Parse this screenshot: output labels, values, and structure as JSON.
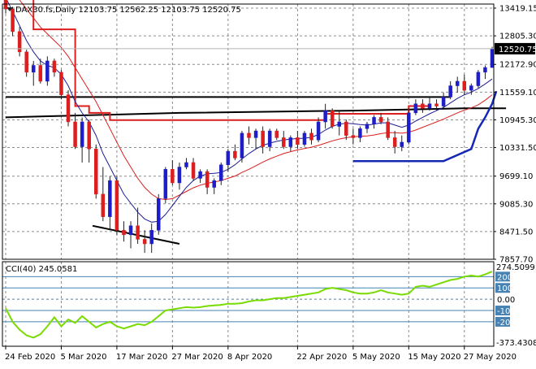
{
  "chart_data": {
    "type": "candlestick",
    "symbol_line": "DAX30.fs,Daily  12103.75 12562.25 12103.75 12520.75",
    "last_price": 12520.75,
    "colors": {
      "bull": "#1e1ec8",
      "bear": "#dc1e1e",
      "grid": "#8c8c8c",
      "ma_fast": "#1e1e96",
      "ma_slow": "#dc1e1e",
      "step_red": "#dc1e1e",
      "step_blue": "#1428b4",
      "support": "#000000",
      "cci": "#78dc00",
      "cci_level_fill": "#4682b4",
      "price_tag_bg": "#000000"
    },
    "main": {
      "ylim": [
        7857.7,
        13419.15
      ],
      "y_ticks": [
        "13419.15",
        "12805.30",
        "12172.90",
        "11559.10",
        "10945.30",
        "10331.50",
        "9699.10",
        "9085.30",
        "8471.50",
        "7857.70"
      ]
    },
    "x_ticks": [
      "24 Feb 2020",
      "5 Mar 2020",
      "17 Mar 2020",
      "27 Mar 2020",
      "8 Apr 2020",
      "22 Apr 2020",
      "5 May 2020",
      "15 May 2020",
      "27 May 2020"
    ],
    "x_tick_index": [
      0,
      8,
      16,
      24,
      32,
      42,
      50,
      58,
      66
    ],
    "candles": [
      [
        13780,
        13800,
        13300,
        13400
      ],
      [
        13400,
        13450,
        12800,
        12900
      ],
      [
        12900,
        13000,
        12350,
        12450
      ],
      [
        12450,
        12500,
        11900,
        12000
      ],
      [
        12000,
        12250,
        11700,
        12150
      ],
      [
        12150,
        12300,
        11750,
        11800
      ],
      [
        11800,
        12350,
        11700,
        12250
      ],
      [
        12250,
        12300,
        11900,
        12000
      ],
      [
        12000,
        12050,
        11400,
        11500
      ],
      [
        11500,
        11600,
        10800,
        10900
      ],
      [
        10900,
        11100,
        10300,
        10350
      ],
      [
        10350,
        11000,
        10000,
        10900
      ],
      [
        10900,
        10950,
        10000,
        10300
      ],
      [
        10300,
        10400,
        9200,
        9300
      ],
      [
        9300,
        9900,
        8700,
        8800
      ],
      [
        8800,
        9700,
        8500,
        9600
      ],
      [
        9600,
        9700,
        8400,
        8500
      ],
      [
        8500,
        8700,
        8250,
        8400
      ],
      [
        8400,
        8700,
        8100,
        8600
      ],
      [
        8600,
        9000,
        8200,
        8300
      ],
      [
        8300,
        8500,
        8000,
        8200
      ],
      [
        8200,
        8650,
        8000,
        8500
      ],
      [
        8500,
        9300,
        8400,
        9200
      ],
      [
        9200,
        9900,
        9100,
        9850
      ],
      [
        9850,
        10050,
        9500,
        9550
      ],
      [
        9550,
        10000,
        9400,
        9900
      ],
      [
        9900,
        10100,
        9850,
        10000
      ],
      [
        10000,
        10100,
        9600,
        9650
      ],
      [
        9650,
        9850,
        9550,
        9800
      ],
      [
        9800,
        9850,
        9300,
        9450
      ],
      [
        9450,
        9650,
        9300,
        9600
      ],
      [
        9600,
        10000,
        9500,
        9950
      ],
      [
        9950,
        10300,
        9800,
        10250
      ],
      [
        10250,
        10400,
        10050,
        10100
      ],
      [
        10100,
        10700,
        10000,
        10650
      ],
      [
        10650,
        10800,
        10400,
        10550
      ],
      [
        10550,
        10750,
        10300,
        10700
      ],
      [
        10700,
        10800,
        10200,
        10350
      ],
      [
        10350,
        10750,
        10250,
        10700
      ],
      [
        10700,
        10750,
        10500,
        10550
      ],
      [
        10550,
        10700,
        10300,
        10350
      ],
      [
        10350,
        10600,
        10250,
        10550
      ],
      [
        10550,
        10700,
        10300,
        10400
      ],
      [
        10400,
        10700,
        10350,
        10650
      ],
      [
        10650,
        10750,
        10400,
        10500
      ],
      [
        10500,
        11000,
        10450,
        10900
      ],
      [
        10900,
        11300,
        10750,
        11150
      ],
      [
        11150,
        11200,
        10750,
        10800
      ],
      [
        10800,
        11150,
        10600,
        10900
      ],
      [
        10900,
        10950,
        10500,
        10600
      ],
      [
        10600,
        10750,
        10400,
        10550
      ],
      [
        10550,
        10800,
        10450,
        10750
      ],
      [
        10750,
        10900,
        10650,
        10850
      ],
      [
        10850,
        11050,
        10750,
        11000
      ],
      [
        11000,
        11100,
        10850,
        10900
      ],
      [
        10900,
        11000,
        10500,
        10550
      ],
      [
        10550,
        10700,
        10200,
        10350
      ],
      [
        10350,
        10600,
        10250,
        10450
      ],
      [
        10450,
        11200,
        10400,
        11100
      ],
      [
        11100,
        11400,
        11050,
        11300
      ],
      [
        11300,
        11400,
        11100,
        11200
      ],
      [
        11200,
        11450,
        11150,
        11300
      ],
      [
        11300,
        11400,
        11150,
        11250
      ],
      [
        11250,
        11550,
        11200,
        11450
      ],
      [
        11450,
        11800,
        11400,
        11700
      ],
      [
        11700,
        11900,
        11550,
        11800
      ],
      [
        11800,
        11950,
        11500,
        11600
      ],
      [
        11600,
        11750,
        11500,
        11700
      ],
      [
        11700,
        12050,
        11650,
        12000
      ],
      [
        12000,
        12150,
        11850,
        12103.75
      ],
      [
        12103.75,
        12562.25,
        12103.75,
        12520.75
      ]
    ],
    "ma_fast": [
      13650,
      13350,
      13030,
      12700,
      12450,
      12250,
      12150,
      12100,
      11950,
      11700,
      11350,
      11100,
      10900,
      10600,
      10200,
      9900,
      9600,
      9300,
      9100,
      8900,
      8750,
      8680,
      8700,
      8850,
      9050,
      9250,
      9450,
      9600,
      9700,
      9750,
      9760,
      9780,
      9850,
      9950,
      10080,
      10200,
      10300,
      10380,
      10430,
      10470,
      10500,
      10520,
      10530,
      10540,
      10560,
      10620,
      10720,
      10800,
      10850,
      10870,
      10860,
      10840,
      10830,
      10850,
      10880,
      10880,
      10830,
      10780,
      10830,
      10920,
      11000,
      11080,
      11150,
      11220,
      11320,
      11420,
      11500,
      11560,
      11640,
      11740,
      11850
    ],
    "ma_slow": [
      13900,
      13750,
      13600,
      13400,
      13200,
      13000,
      12850,
      12700,
      12550,
      12350,
      12100,
      11850,
      11600,
      11350,
      11050,
      10750,
      10450,
      10150,
      9900,
      9650,
      9450,
      9300,
      9200,
      9180,
      9200,
      9280,
      9360,
      9440,
      9500,
      9540,
      9570,
      9600,
      9650,
      9700,
      9780,
      9850,
      9930,
      10010,
      10080,
      10140,
      10200,
      10240,
      10280,
      10310,
      10340,
      10380,
      10430,
      10480,
      10520,
      10550,
      10570,
      10580,
      10590,
      10610,
      10640,
      10660,
      10660,
      10650,
      10670,
      10720,
      10780,
      10840,
      10900,
      10960,
      11030,
      11100,
      11160,
      11210,
      11280,
      11380,
      11500
    ],
    "step_red": [
      [
        0,
        13650
      ],
      [
        4,
        13650
      ],
      [
        4,
        12950
      ],
      [
        10,
        12950
      ],
      [
        10,
        11250
      ],
      [
        12,
        11250
      ],
      [
        12,
        11100
      ],
      [
        15,
        11100
      ],
      [
        15,
        10940
      ],
      [
        46,
        10940
      ],
      [
        46,
        11080
      ],
      [
        58,
        11080
      ],
      [
        58,
        11250
      ],
      [
        61,
        11250
      ]
    ],
    "step_blue": [
      [
        50,
        10030
      ],
      [
        63,
        10030
      ],
      [
        67,
        10300
      ],
      [
        68,
        10750
      ],
      [
        69,
        11000
      ],
      [
        70,
        11300
      ],
      [
        70.6,
        11580
      ]
    ],
    "support_upper": [
      [
        0,
        11450
      ],
      [
        64,
        11450
      ]
    ],
    "support_lower": [
      [
        0,
        11000
      ],
      [
        25,
        11100
      ],
      [
        50,
        11150
      ],
      [
        66,
        11200
      ],
      [
        72,
        11200
      ]
    ],
    "trend_low": [
      [
        12.5,
        8600
      ],
      [
        25,
        8200
      ]
    ],
    "cci": {
      "label": "CCI(40) 245.0581",
      "ylim": [
        -373.4308,
        274.5099
      ],
      "top_label": "274.5099",
      "bottom_label": "-373.4308",
      "levels": [
        200,
        100,
        0,
        -100,
        -200
      ],
      "level_labels": [
        "200",
        "100",
        "0.00",
        "-100",
        "-200"
      ],
      "values": [
        -80,
        -200,
        -270,
        -320,
        -340,
        -310,
        -240,
        -160,
        -240,
        -180,
        -210,
        -150,
        -200,
        -250,
        -220,
        -200,
        -240,
        -260,
        -240,
        -220,
        -230,
        -200,
        -150,
        -100,
        -90,
        -80,
        -70,
        -75,
        -70,
        -60,
        -55,
        -50,
        -40,
        -40,
        -35,
        -20,
        -10,
        -10,
        0,
        10,
        10,
        20,
        30,
        40,
        50,
        60,
        90,
        100,
        90,
        80,
        60,
        50,
        50,
        60,
        80,
        60,
        50,
        40,
        50,
        110,
        120,
        110,
        130,
        150,
        170,
        180,
        200,
        210,
        200,
        220,
        245
      ]
    }
  }
}
